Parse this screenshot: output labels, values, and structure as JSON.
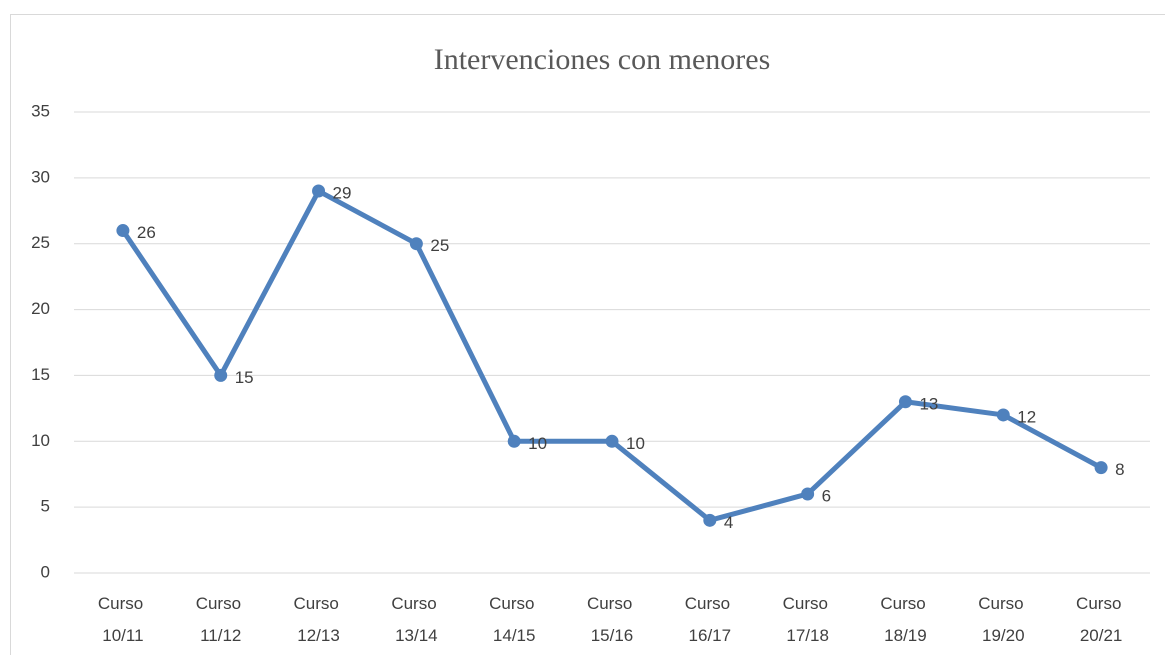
{
  "chart_data": {
    "type": "line",
    "title": "Intervenciones con menores",
    "categories": [
      "Curso 10/11",
      "Curso 11/12",
      "Curso 12/13",
      "Curso 13/14",
      "Curso 14/15",
      "Curso 15/16",
      "Curso 16/17",
      "Curso 17/18",
      "Curso 18/19",
      "Curso 19/20",
      "Curso 20/21"
    ],
    "series": [
      {
        "name": "Intervenciones",
        "color": "#4f81bd",
        "values": [
          26,
          15,
          29,
          25,
          10,
          10,
          4,
          6,
          13,
          12,
          8
        ]
      }
    ],
    "ylim": [
      0,
      35
    ],
    "yticks": [
      0,
      5,
      10,
      15,
      20,
      25,
      30,
      35
    ],
    "grid": true
  }
}
